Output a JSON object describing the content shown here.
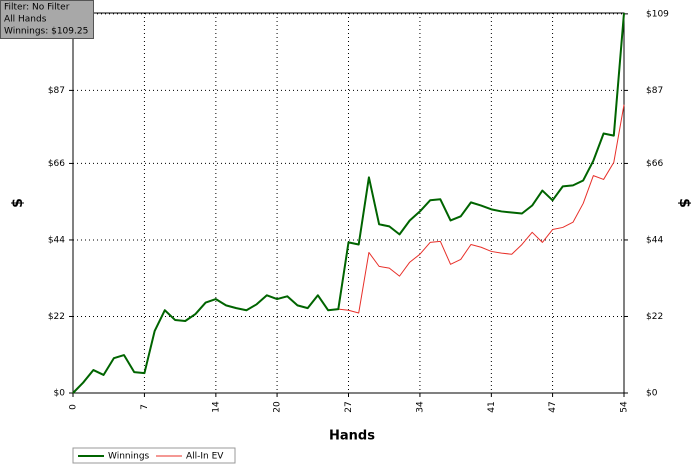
{
  "chart_data": {
    "type": "line",
    "info_box": [
      "Filter: No Filter",
      "All Hands",
      "Winnings: $109.25"
    ],
    "x_label": "Hands",
    "y_label": "$",
    "x": [
      0,
      1,
      2,
      3,
      4,
      5,
      6,
      7,
      8,
      9,
      10,
      11,
      12,
      13,
      14,
      15,
      16,
      17,
      18,
      19,
      20,
      21,
      22,
      23,
      24,
      25,
      26,
      27,
      28,
      29,
      30,
      31,
      32,
      33,
      34,
      35,
      36,
      37,
      38,
      39,
      40,
      41,
      42,
      43,
      44,
      45,
      46,
      47,
      48,
      49,
      50,
      51,
      52,
      53,
      54
    ],
    "series": [
      {
        "name": "Winnings",
        "color": "#006400",
        "values": [
          0,
          3,
          6.6,
          5.2,
          10,
          10.9,
          6,
          5.7,
          17.8,
          23.8,
          21,
          20.7,
          22.7,
          26,
          27,
          25.2,
          24.4,
          23.8,
          25.5,
          28.1,
          27,
          27.8,
          25.2,
          24.4,
          28.1,
          23.8,
          24.1,
          43.3,
          42.7,
          62,
          48.5,
          47.9,
          45.6,
          49.6,
          52.2,
          55.4,
          55.7,
          49.6,
          50.8,
          54.8,
          53.9,
          52.8,
          52.2,
          51.9,
          51.6,
          53.9,
          58.2,
          55.4,
          59.4,
          59.7,
          61.1,
          66.8,
          74.6,
          74,
          109.25
        ]
      },
      {
        "name": "All-In EV",
        "color": "#e8302a",
        "values": [
          0,
          3,
          6.6,
          5.2,
          10,
          10.9,
          6,
          5.7,
          17.8,
          23.8,
          21,
          20.7,
          22.7,
          26,
          27,
          25.2,
          24.4,
          23.8,
          25.5,
          28.1,
          27,
          27.8,
          25.2,
          24.4,
          28.1,
          23.8,
          24.1,
          23.8,
          23,
          40.4,
          36.4,
          35.9,
          33.6,
          37.6,
          39.9,
          43.3,
          43.6,
          37,
          38.4,
          42.7,
          41.9,
          40.7,
          40.2,
          39.9,
          42.7,
          46.2,
          43.3,
          47,
          47.6,
          49.1,
          54.5,
          62.5,
          61.4,
          66.3,
          82.9
        ]
      }
    ],
    "xlim": [
      0,
      54
    ],
    "xticks": [
      0,
      7,
      14,
      20,
      27,
      34,
      41,
      47,
      54
    ],
    "ylim": [
      0,
      109.25
    ],
    "yticks": [
      {
        "value": 0,
        "label": "$0"
      },
      {
        "value": 22,
        "label": "$22"
      },
      {
        "value": 44,
        "label": "$44"
      },
      {
        "value": 66,
        "label": "$66"
      },
      {
        "value": 87,
        "label": "$87"
      },
      {
        "value": 109,
        "label": "$109"
      }
    ],
    "grid": true
  }
}
